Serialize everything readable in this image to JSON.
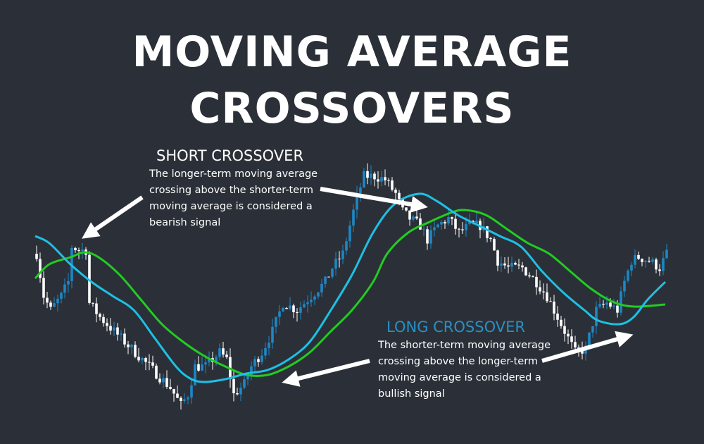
{
  "title": {
    "line1": "MOVING AVERAGE",
    "line2": "CROSSOVERS"
  },
  "short_crossover": {
    "heading": "SHORT CROSSOVER",
    "description": "The longer-term moving average crossing above the shorter-term moving average is considered a bearish signal"
  },
  "long_crossover": {
    "heading": "LONG CROSSOVER",
    "description": "The shorter-term moving average crossing above the longer-term moving average is considered a bullish signal"
  },
  "colors": {
    "background": "#2b3038",
    "candle_up": "#ffffff",
    "candle_down": "#1f86c4",
    "short_ma": "#1ec0e4",
    "long_ma": "#22cc22",
    "long_heading": "#2a8fc4",
    "arrows": "#ffffff"
  },
  "chart_data": {
    "type": "candlestick",
    "axes_visible": false,
    "grid": false,
    "bars": 180,
    "price_path": [
      [
        0,
        48
      ],
      [
        2,
        36
      ],
      [
        4,
        32
      ],
      [
        7,
        36
      ],
      [
        9,
        40
      ],
      [
        10,
        50
      ],
      [
        12,
        49
      ],
      [
        14,
        49
      ],
      [
        15,
        34
      ],
      [
        18,
        30
      ],
      [
        22,
        26
      ],
      [
        26,
        22
      ],
      [
        30,
        18
      ],
      [
        34,
        14
      ],
      [
        38,
        10
      ],
      [
        41,
        5
      ],
      [
        43,
        8
      ],
      [
        45,
        16
      ],
      [
        48,
        16
      ],
      [
        52,
        20
      ],
      [
        54,
        18
      ],
      [
        56,
        8
      ],
      [
        59,
        11
      ],
      [
        61,
        16
      ],
      [
        64,
        20
      ],
      [
        67,
        26
      ],
      [
        70,
        34
      ],
      [
        74,
        32
      ],
      [
        78,
        36
      ],
      [
        82,
        40
      ],
      [
        84,
        44
      ],
      [
        87,
        48
      ],
      [
        89,
        56
      ],
      [
        91,
        64
      ],
      [
        93,
        70
      ],
      [
        96,
        70
      ],
      [
        99,
        69
      ],
      [
        102,
        65
      ],
      [
        104,
        60
      ],
      [
        106,
        58
      ],
      [
        109,
        56
      ],
      [
        111,
        52
      ],
      [
        114,
        56
      ],
      [
        117,
        58
      ],
      [
        120,
        54
      ],
      [
        123,
        56
      ],
      [
        126,
        56
      ],
      [
        129,
        52
      ],
      [
        131,
        46
      ],
      [
        134,
        44
      ],
      [
        138,
        44
      ],
      [
        142,
        40
      ],
      [
        145,
        36
      ],
      [
        147,
        32
      ],
      [
        150,
        26
      ],
      [
        153,
        20
      ],
      [
        156,
        21
      ],
      [
        159,
        32
      ],
      [
        162,
        34
      ],
      [
        165,
        32
      ],
      [
        167,
        40
      ],
      [
        169,
        46
      ],
      [
        171,
        47
      ],
      [
        174,
        46
      ],
      [
        177,
        44
      ],
      [
        179,
        48
      ]
    ],
    "short_ma": [
      [
        0,
        53
      ],
      [
        4,
        51
      ],
      [
        10,
        45
      ],
      [
        16,
        40
      ],
      [
        22,
        36
      ],
      [
        28,
        32
      ],
      [
        34,
        24
      ],
      [
        40,
        16
      ],
      [
        44,
        12.6
      ],
      [
        48,
        11.6
      ],
      [
        54,
        12.4
      ],
      [
        60,
        14
      ],
      [
        66,
        15
      ],
      [
        72,
        18
      ],
      [
        78,
        23
      ],
      [
        84,
        32
      ],
      [
        90,
        42
      ],
      [
        96,
        54
      ],
      [
        102,
        62
      ],
      [
        109,
        65
      ],
      [
        114,
        63
      ],
      [
        120,
        59
      ],
      [
        126,
        56
      ],
      [
        132,
        53
      ],
      [
        138,
        50
      ],
      [
        144,
        43
      ],
      [
        150,
        37
      ],
      [
        156,
        32
      ],
      [
        160,
        29
      ],
      [
        166,
        28
      ],
      [
        170,
        30
      ],
      [
        174,
        35
      ],
      [
        179,
        40
      ]
    ],
    "long_ma": [
      [
        0,
        41
      ],
      [
        4,
        45
      ],
      [
        10,
        47
      ],
      [
        14,
        48.4
      ],
      [
        18,
        47
      ],
      [
        24,
        42
      ],
      [
        30,
        35
      ],
      [
        36,
        28
      ],
      [
        42,
        23
      ],
      [
        48,
        19
      ],
      [
        54,
        16
      ],
      [
        60,
        13.6
      ],
      [
        66,
        13.6
      ],
      [
        72,
        16
      ],
      [
        78,
        20
      ],
      [
        84,
        26
      ],
      [
        90,
        32
      ],
      [
        96,
        40
      ],
      [
        100,
        48
      ],
      [
        106,
        54
      ],
      [
        112,
        57
      ],
      [
        118,
        59.6
      ],
      [
        122,
        60.4
      ],
      [
        128,
        59
      ],
      [
        134,
        55
      ],
      [
        140,
        51
      ],
      [
        146,
        48
      ],
      [
        152,
        43
      ],
      [
        158,
        38
      ],
      [
        164,
        34.4
      ],
      [
        170,
        33
      ],
      [
        179,
        33.6
      ]
    ]
  }
}
